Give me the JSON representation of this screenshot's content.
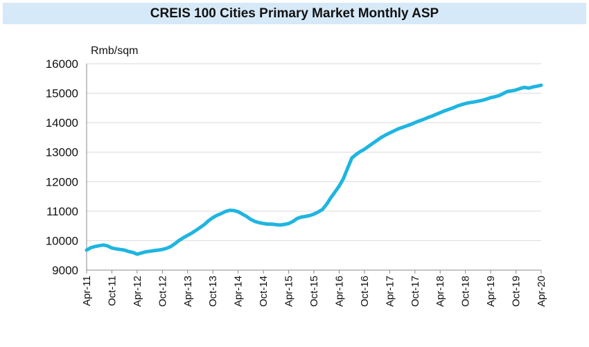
{
  "chart_data": {
    "type": "line",
    "title": "CREIS 100 Cities Primary Market Monthly ASP",
    "ylabel": "Rmb/sqm",
    "xlabel": "",
    "ylim": [
      9000,
      16000
    ],
    "yticks": [
      9000,
      10000,
      11000,
      12000,
      13000,
      14000,
      15000,
      16000
    ],
    "xtick_labels": [
      "Apr-11",
      "Oct-11",
      "Apr-12",
      "Oct-12",
      "Apr-13",
      "Oct-13",
      "Apr-14",
      "Oct-14",
      "Apr-15",
      "Oct-15",
      "Apr-16",
      "Oct-16",
      "Apr-17",
      "Oct-17",
      "Apr-18",
      "Oct-18",
      "Apr-19",
      "Oct-19",
      "Apr-20"
    ],
    "grid": "horizontal",
    "legend": "none",
    "line_color": "#1fb5e1",
    "series": [
      {
        "x": [
          "Apr-11",
          "May-11",
          "Jun-11",
          "Jul-11",
          "Aug-11",
          "Sep-11",
          "Oct-11",
          "Nov-11",
          "Dec-11",
          "Jan-12",
          "Feb-12",
          "Mar-12",
          "Apr-12",
          "May-12",
          "Jun-12",
          "Jul-12",
          "Aug-12",
          "Sep-12",
          "Oct-12",
          "Nov-12",
          "Dec-12",
          "Jan-13",
          "Feb-13",
          "Mar-13",
          "Apr-13",
          "May-13",
          "Jun-13",
          "Jul-13",
          "Aug-13",
          "Sep-13",
          "Oct-13",
          "Nov-13",
          "Dec-13",
          "Jan-14",
          "Feb-14",
          "Mar-14",
          "Apr-14",
          "May-14",
          "Jun-14",
          "Jul-14",
          "Aug-14",
          "Sep-14",
          "Oct-14",
          "Nov-14",
          "Dec-14",
          "Jan-15",
          "Feb-15",
          "Mar-15",
          "Apr-15",
          "May-15",
          "Jun-15",
          "Jul-15",
          "Aug-15",
          "Sep-15",
          "Oct-15",
          "Nov-15",
          "Dec-15",
          "Jan-16",
          "Feb-16",
          "Mar-16",
          "Apr-16",
          "May-16",
          "Jun-16",
          "Jul-16",
          "Aug-16",
          "Sep-16",
          "Oct-16",
          "Nov-16",
          "Dec-16",
          "Jan-17",
          "Feb-17",
          "Mar-17",
          "Apr-17",
          "May-17",
          "Jun-17",
          "Jul-17",
          "Aug-17",
          "Sep-17",
          "Oct-17",
          "Nov-17",
          "Dec-17",
          "Jan-18",
          "Feb-18",
          "Mar-18",
          "Apr-18",
          "May-18",
          "Jun-18",
          "Jul-18",
          "Aug-18",
          "Sep-18",
          "Oct-18",
          "Nov-18",
          "Dec-18",
          "Jan-19",
          "Feb-19",
          "Mar-19",
          "Apr-19",
          "May-19",
          "Jun-19",
          "Jul-19",
          "Aug-19",
          "Sep-19",
          "Oct-19",
          "Nov-19",
          "Dec-19",
          "Jan-20",
          "Feb-20",
          "Mar-20",
          "Apr-20"
        ],
        "values": [
          9680,
          9760,
          9800,
          9830,
          9850,
          9820,
          9750,
          9720,
          9700,
          9680,
          9630,
          9600,
          9540,
          9580,
          9620,
          9640,
          9660,
          9680,
          9700,
          9740,
          9800,
          9900,
          10010,
          10100,
          10180,
          10260,
          10350,
          10450,
          10550,
          10680,
          10780,
          10860,
          10920,
          10990,
          11030,
          11020,
          10980,
          10900,
          10820,
          10720,
          10650,
          10610,
          10580,
          10560,
          10560,
          10540,
          10530,
          10550,
          10580,
          10650,
          10750,
          10800,
          10820,
          10850,
          10900,
          10970,
          11050,
          11230,
          11450,
          11650,
          11850,
          12100,
          12450,
          12800,
          12920,
          13020,
          13100,
          13200,
          13300,
          13400,
          13500,
          13580,
          13650,
          13720,
          13790,
          13840,
          13890,
          13940,
          14000,
          14060,
          14110,
          14170,
          14220,
          14280,
          14340,
          14400,
          14450,
          14500,
          14560,
          14610,
          14650,
          14680,
          14700,
          14730,
          14760,
          14800,
          14850,
          14880,
          14920,
          14990,
          15060,
          15080,
          15110,
          15160,
          15200,
          15170,
          15210,
          15240,
          15270
        ]
      }
    ]
  }
}
